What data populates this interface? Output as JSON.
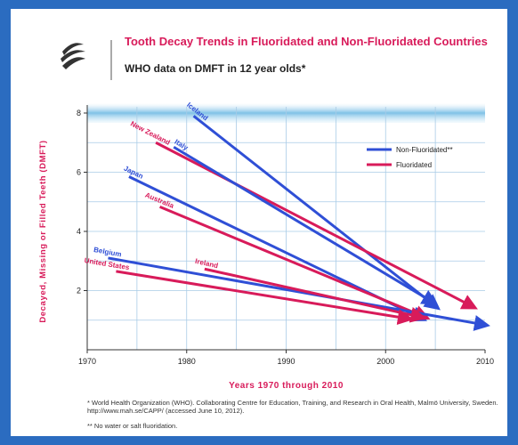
{
  "chart_data": {
    "type": "arrow-line",
    "title": "Tooth Decay Trends in Fluoridated and Non-Fluoridated Countries",
    "subtitle": "WHO data on DMFT in 12 year olds*",
    "x_label": "Years 1970 through 2010",
    "y_label": "Decayed, Missing or Filled Teeth (DMFT)",
    "xlim": [
      1970,
      2010
    ],
    "ylim": [
      0,
      8
    ],
    "xticks": [
      1970,
      1980,
      1990,
      2000,
      2010
    ],
    "yticks": [
      2,
      4,
      6,
      8
    ],
    "xgrid": [
      1975,
      1980,
      1985,
      1990,
      1995,
      2000,
      2005
    ],
    "ygrid": [
      1,
      2,
      3,
      4,
      5,
      6,
      7
    ],
    "grid": true,
    "legend": [
      {
        "label": "Non-Fluoridated**",
        "color": "#2f4fd6"
      },
      {
        "label": "Fluoridated",
        "color": "#d81b5a"
      }
    ],
    "series": [
      {
        "name": "Iceland",
        "color": "#2f4fd6",
        "x": [
          1980.7,
          2005.1
        ],
        "values": [
          7.9,
          1.45
        ]
      },
      {
        "name": "New Zealand",
        "color": "#d81b5a",
        "x": [
          1976.9,
          2008.8
        ],
        "values": [
          7.0,
          1.45
        ]
      },
      {
        "name": "Italy",
        "color": "#2f4fd6",
        "x": [
          1978.7,
          2004.8
        ],
        "values": [
          6.85,
          1.6
        ]
      },
      {
        "name": "Japan",
        "color": "#2f4fd6",
        "x": [
          1974.2,
          2003.7
        ],
        "values": [
          5.85,
          1.05
        ]
      },
      {
        "name": "Australia",
        "color": "#d81b5a",
        "x": [
          1977.3,
          2004.0
        ],
        "values": [
          4.83,
          1.1
        ]
      },
      {
        "name": "Belgium",
        "color": "#2f4fd6",
        "x": [
          1972.1,
          2010.0
        ],
        "values": [
          3.1,
          0.84
        ]
      },
      {
        "name": "United States",
        "color": "#d81b5a",
        "x": [
          1972.9,
          2002.3
        ],
        "values": [
          2.65,
          1.05
        ]
      },
      {
        "name": "Ireland",
        "color": "#d81b5a",
        "x": [
          1981.8,
          2003.6
        ],
        "values": [
          2.73,
          1.1
        ]
      }
    ],
    "footnotes": [
      "* World Health Organization (WHO). Collaborating Centre for Education, Training, and Research in Oral Health, Malmö University, Sweden. http://www.mah.se/CAPP/ (accessed June 10, 2012).",
      "** No water or salt fluoridation."
    ]
  }
}
